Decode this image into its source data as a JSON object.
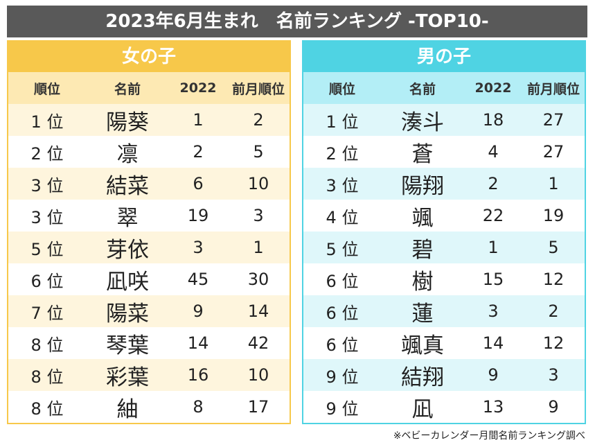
{
  "header": {
    "title": "2023年6月生まれ　名前ランキング -TOP10-"
  },
  "tables": [
    {
      "title": "女の子",
      "columns": [
        "順位",
        "名前",
        "2022",
        "前月順位"
      ],
      "rows": [
        [
          "1 位",
          "陽葵",
          1,
          2
        ],
        [
          "2 位",
          "凛",
          2,
          5
        ],
        [
          "3 位",
          "結菜",
          6,
          10
        ],
        [
          "3 位",
          "翠",
          19,
          3
        ],
        [
          "5 位",
          "芽依",
          3,
          1
        ],
        [
          "6 位",
          "凪咲",
          45,
          30
        ],
        [
          "7 位",
          "陽菜",
          9,
          14
        ],
        [
          "8 位",
          "琴葉",
          14,
          42
        ],
        [
          "8 位",
          "彩葉",
          16,
          10
        ],
        [
          "8 位",
          "紬",
          8,
          17
        ]
      ]
    },
    {
      "title": "男の子",
      "columns": [
        "順位",
        "名前",
        "2022",
        "前月順位"
      ],
      "rows": [
        [
          "1 位",
          "湊斗",
          18,
          27
        ],
        [
          "2 位",
          "蒼",
          4,
          27
        ],
        [
          "3 位",
          "陽翔",
          2,
          1
        ],
        [
          "4 位",
          "颯",
          22,
          19
        ],
        [
          "5 位",
          "碧",
          1,
          5
        ],
        [
          "6 位",
          "樹",
          15,
          12
        ],
        [
          "6 位",
          "蓮",
          3,
          2
        ],
        [
          "6 位",
          "颯真",
          14,
          12
        ],
        [
          "9 位",
          "結翔",
          9,
          3
        ],
        [
          "9 位",
          "凪",
          13,
          9
        ]
      ]
    }
  ],
  "footnote": "※ベビーカレンダー月間名前ランキング調べ"
}
